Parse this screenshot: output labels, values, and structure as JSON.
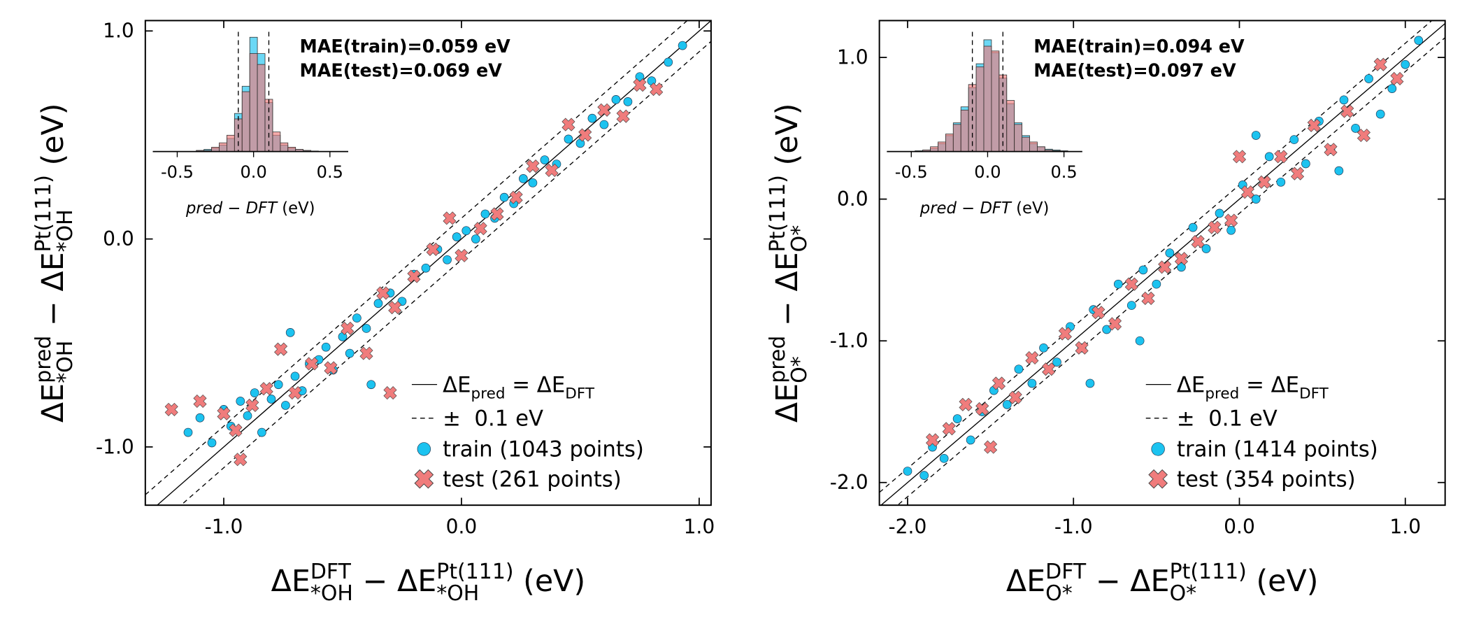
{
  "chart_data": [
    {
      "type": "scatter",
      "x_label": [
        {
          "text": "ΔE"
        },
        {
          "text": "DFT",
          "pos": "sup"
        },
        {
          "text": "*OH",
          "pos": "sub"
        },
        {
          "text": " − ΔE"
        },
        {
          "text": "Pt(111)",
          "pos": "sup"
        },
        {
          "text": "*OH",
          "pos": "sub"
        },
        {
          "text": " (eV)"
        }
      ],
      "y_label": [
        {
          "text": "ΔE"
        },
        {
          "text": "pred",
          "pos": "sup"
        },
        {
          "text": "*OH",
          "pos": "sub"
        },
        {
          "text": " − ΔE"
        },
        {
          "text": "Pt(111)",
          "pos": "sup"
        },
        {
          "text": "*OH",
          "pos": "sub"
        },
        {
          "text": " (eV)"
        }
      ],
      "xlim": [
        -1.33,
        1.05
      ],
      "ylim": [
        -1.28,
        1.05
      ],
      "xticks": [
        {
          "value": -1,
          "label": "-1.0"
        },
        {
          "value": 0,
          "label": "0.0"
        },
        {
          "value": 1,
          "label": "1.0"
        }
      ],
      "yticks": [
        {
          "value": -1,
          "label": "-1.0"
        },
        {
          "value": 0,
          "label": "0.0"
        },
        {
          "value": 1,
          "label": "1.0"
        }
      ],
      "legend": "lower right",
      "reference_lines": [
        {
          "label": [
            {
              "text": "ΔE"
            },
            {
              "text": "pred",
              "pos": "sub"
            },
            {
              "text": " = ΔE"
            },
            {
              "text": "DFT",
              "pos": "sub"
            }
          ],
          "style": "solid",
          "offset": 0
        },
        {
          "label": [
            {
              "text": "±  0.1 eV"
            }
          ],
          "style": "dashed",
          "offset": 0.1
        }
      ],
      "series": [
        {
          "name": "train (1043 points)",
          "marker": "o",
          "color": "#1cc3f0",
          "x": [
            -1.15,
            -1.1,
            -1.05,
            -1.0,
            -0.97,
            -0.93,
            -0.9,
            -0.87,
            -0.84,
            -0.8,
            -0.77,
            -0.74,
            -0.7,
            -0.67,
            -0.64,
            -0.6,
            -0.57,
            -0.54,
            -0.5,
            -0.47,
            -0.44,
            -0.4,
            -0.35,
            -0.3,
            -0.25,
            -0.2,
            -0.15,
            -0.1,
            -0.06,
            -0.02,
            0.02,
            0.06,
            0.1,
            0.14,
            0.18,
            0.22,
            0.26,
            0.3,
            0.35,
            0.4,
            0.45,
            0.5,
            0.55,
            0.6,
            0.65,
            0.7,
            0.75,
            0.8,
            0.87,
            0.93,
            -0.72,
            -0.38
          ],
          "values": [
            -0.93,
            -0.86,
            -0.98,
            -0.82,
            -0.9,
            -0.78,
            -0.85,
            -0.74,
            -0.93,
            -0.77,
            -0.7,
            -0.8,
            -0.66,
            -0.73,
            -0.6,
            -0.58,
            -0.52,
            -0.63,
            -0.47,
            -0.55,
            -0.38,
            -0.43,
            -0.31,
            -0.26,
            -0.3,
            -0.17,
            -0.14,
            -0.05,
            -0.1,
            0.01,
            0.04,
            0.0,
            0.12,
            0.1,
            0.2,
            0.17,
            0.29,
            0.27,
            0.38,
            0.36,
            0.48,
            0.46,
            0.58,
            0.55,
            0.67,
            0.66,
            0.78,
            0.76,
            0.85,
            0.93,
            -0.45,
            -0.7
          ]
        },
        {
          "name": "test (261 points)",
          "marker": "X",
          "color": "#f07c7c",
          "x": [
            -1.22,
            -1.1,
            -1.0,
            -0.93,
            -0.88,
            -0.82,
            -0.76,
            -0.7,
            -0.63,
            -0.55,
            -0.48,
            -0.4,
            -0.33,
            -0.28,
            -0.2,
            -0.12,
            -0.05,
            0.0,
            0.08,
            0.15,
            0.23,
            0.3,
            0.38,
            0.45,
            0.52,
            0.6,
            0.68,
            0.75,
            0.82,
            -0.95,
            -0.3
          ],
          "values": [
            -0.82,
            -0.78,
            -0.84,
            -1.06,
            -0.8,
            -0.72,
            -0.53,
            -0.74,
            -0.6,
            -0.62,
            -0.43,
            -0.55,
            -0.26,
            -0.33,
            -0.18,
            -0.05,
            0.1,
            -0.08,
            0.05,
            0.12,
            0.2,
            0.35,
            0.33,
            0.55,
            0.5,
            0.62,
            0.59,
            0.74,
            0.72,
            -0.92,
            -0.74
          ]
        }
      ],
      "annotations": [
        {
          "text": "MAE(train)=0.059 eV",
          "color": "#1cc3f0"
        },
        {
          "text": "MAE(test)=0.069 eV",
          "color": "#f07c7c"
        }
      ],
      "inset": {
        "type": "histogram",
        "x_label": [
          {
            "text": "pred",
            "style": "italic"
          },
          {
            "text": " − "
          },
          {
            "text": "DFT",
            "style": "italic"
          },
          {
            "text": " (eV)"
          }
        ],
        "xlim": [
          -0.66,
          0.62
        ],
        "ylim": [
          0,
          11
        ],
        "xticks": [
          {
            "value": -0.5,
            "label": "-0.5"
          },
          {
            "value": 0,
            "label": "0.0"
          },
          {
            "value": 0.5,
            "label": "0.5"
          }
        ],
        "bins": [
          -0.625,
          -0.575,
          -0.525,
          -0.475,
          -0.425,
          -0.375,
          -0.325,
          -0.275,
          -0.225,
          -0.175,
          -0.125,
          -0.075,
          -0.025,
          0.025,
          0.075,
          0.125,
          0.175,
          0.225,
          0.275,
          0.325,
          0.375,
          0.425,
          0.475,
          0.525,
          0.575,
          0.625
        ],
        "series": [
          {
            "color": "#1cc3f0",
            "values": [
              0,
              0,
              0,
              0,
              0,
              0.1,
              0.2,
              0.3,
              0.6,
              1.2,
              3.5,
              6.0,
              10.5,
              9.0,
              4.5,
              1.5,
              0.6,
              0.3,
              0.2,
              0.1,
              0,
              0,
              0,
              0,
              0
            ]
          },
          {
            "color": "#f07c7c",
            "values": [
              0,
              0,
              0,
              0,
              0,
              0.1,
              0.1,
              0.4,
              0.8,
              1.5,
              3.0,
              5.5,
              9.0,
              8.0,
              4.8,
              1.8,
              0.8,
              0.4,
              0.2,
              0.1,
              0.05,
              0,
              0,
              0,
              0
            ]
          }
        ]
      }
    },
    {
      "type": "scatter",
      "x_label": [
        {
          "text": "ΔE"
        },
        {
          "text": "DFT",
          "pos": "sup"
        },
        {
          "text": "O*",
          "pos": "sub"
        },
        {
          "text": " − ΔE"
        },
        {
          "text": "Pt(111)",
          "pos": "sup"
        },
        {
          "text": "O*",
          "pos": "sub"
        },
        {
          "text": " (eV)"
        }
      ],
      "y_label": [
        {
          "text": "ΔE"
        },
        {
          "text": "pred",
          "pos": "sup"
        },
        {
          "text": "O*",
          "pos": "sub"
        },
        {
          "text": " − ΔE"
        },
        {
          "text": "Pt(111)",
          "pos": "sup"
        },
        {
          "text": "O*",
          "pos": "sub"
        },
        {
          "text": " (eV)"
        }
      ],
      "xlim": [
        -2.17,
        1.24
      ],
      "ylim": [
        -2.16,
        1.26
      ],
      "xticks": [
        {
          "value": -2,
          "label": "-2.0"
        },
        {
          "value": -1,
          "label": "-1.0"
        },
        {
          "value": 0,
          "label": "0.0"
        },
        {
          "value": 1,
          "label": "1.0"
        }
      ],
      "yticks": [
        {
          "value": -2,
          "label": "-2.0"
        },
        {
          "value": -1,
          "label": "-1.0"
        },
        {
          "value": 0,
          "label": "0.0"
        },
        {
          "value": 1,
          "label": "1.0"
        }
      ],
      "legend": "lower right",
      "reference_lines": [
        {
          "label": [
            {
              "text": "ΔE"
            },
            {
              "text": "pred",
              "pos": "sub"
            },
            {
              "text": " = ΔE"
            },
            {
              "text": "DFT",
              "pos": "sub"
            }
          ],
          "style": "solid",
          "offset": 0
        },
        {
          "label": [
            {
              "text": "±  0.1 eV"
            }
          ],
          "style": "dashed",
          "offset": 0.1
        }
      ],
      "series": [
        {
          "name": "train (1414 points)",
          "marker": "o",
          "color": "#1cc3f0",
          "x": [
            -2.0,
            -1.9,
            -1.85,
            -1.78,
            -1.7,
            -1.62,
            -1.55,
            -1.48,
            -1.4,
            -1.33,
            -1.25,
            -1.18,
            -1.1,
            -1.02,
            -0.95,
            -0.88,
            -0.8,
            -0.73,
            -0.65,
            -0.58,
            -0.5,
            -0.42,
            -0.35,
            -0.28,
            -0.2,
            -0.12,
            -0.05,
            0.02,
            0.1,
            0.18,
            0.25,
            0.33,
            0.4,
            0.48,
            0.55,
            0.63,
            0.7,
            0.78,
            0.85,
            0.92,
            1.0,
            1.08,
            -0.6,
            -0.9,
            0.1,
            0.6
          ],
          "values": [
            -1.92,
            -1.95,
            -1.75,
            -1.83,
            -1.55,
            -1.7,
            -1.5,
            -1.35,
            -1.45,
            -1.2,
            -1.3,
            -1.05,
            -1.15,
            -0.9,
            -1.05,
            -0.78,
            -0.92,
            -0.6,
            -0.75,
            -0.5,
            -0.6,
            -0.38,
            -0.48,
            -0.2,
            -0.35,
            -0.1,
            -0.22,
            0.1,
            0.0,
            0.3,
            0.12,
            0.42,
            0.25,
            0.55,
            0.35,
            0.7,
            0.5,
            0.85,
            0.6,
            0.78,
            0.95,
            1.12,
            -1.0,
            -1.3,
            0.45,
            0.2
          ]
        },
        {
          "name": "test (354 points)",
          "marker": "X",
          "color": "#f07c7c",
          "x": [
            -1.85,
            -1.75,
            -1.65,
            -1.55,
            -1.45,
            -1.35,
            -1.25,
            -1.15,
            -1.05,
            -0.95,
            -0.85,
            -0.75,
            -0.65,
            -0.55,
            -0.45,
            -0.35,
            -0.25,
            -0.15,
            -0.05,
            0.05,
            0.15,
            0.25,
            0.35,
            0.45,
            0.55,
            0.65,
            0.75,
            0.85,
            0.95,
            -1.5,
            0.0
          ],
          "values": [
            -1.7,
            -1.62,
            -1.45,
            -1.48,
            -1.3,
            -1.4,
            -1.12,
            -1.2,
            -0.95,
            -1.05,
            -0.8,
            -0.88,
            -0.6,
            -0.7,
            -0.48,
            -0.42,
            -0.3,
            -0.2,
            -0.15,
            0.05,
            0.12,
            0.3,
            0.18,
            0.52,
            0.35,
            0.62,
            0.45,
            0.95,
            0.85,
            -1.75,
            0.3
          ]
        }
      ],
      "annotations": [
        {
          "text": "MAE(train)=0.094 eV",
          "color": "#1cc3f0"
        },
        {
          "text": "MAE(test)=0.097 eV",
          "color": "#f07c7c"
        }
      ],
      "inset": {
        "type": "histogram",
        "x_label": [
          {
            "text": "pred",
            "style": "italic"
          },
          {
            "text": " − "
          },
          {
            "text": "DFT",
            "style": "italic"
          },
          {
            "text": " (eV)"
          }
        ],
        "xlim": [
          -0.66,
          0.62
        ],
        "ylim": [
          0,
          7.5
        ],
        "xticks": [
          {
            "value": -0.5,
            "label": "-0.5"
          },
          {
            "value": 0,
            "label": "0.0"
          },
          {
            "value": 0.5,
            "label": "0.5"
          }
        ],
        "bins": [
          -0.625,
          -0.575,
          -0.525,
          -0.475,
          -0.425,
          -0.375,
          -0.325,
          -0.275,
          -0.225,
          -0.175,
          -0.125,
          -0.075,
          -0.025,
          0.025,
          0.075,
          0.125,
          0.175,
          0.225,
          0.275,
          0.325,
          0.375,
          0.425,
          0.475,
          0.525,
          0.575,
          0.625
        ],
        "series": [
          {
            "color": "#1cc3f0",
            "values": [
              0,
              0,
              0,
              0.05,
              0.1,
              0.2,
              0.5,
              1.0,
              1.8,
              2.8,
              4.0,
              5.5,
              7.0,
              6.2,
              4.6,
              3.0,
              1.8,
              1.0,
              0.5,
              0.3,
              0.15,
              0.1,
              0.05,
              0,
              0
            ]
          },
          {
            "color": "#f07c7c",
            "values": [
              0,
              0,
              0,
              0,
              0.1,
              0.3,
              0.6,
              1.1,
              1.7,
              2.6,
              4.2,
              5.3,
              6.6,
              6.3,
              4.8,
              3.2,
              1.7,
              0.9,
              0.6,
              0.3,
              0.1,
              0.05,
              0,
              0,
              0
            ]
          }
        ]
      }
    }
  ]
}
